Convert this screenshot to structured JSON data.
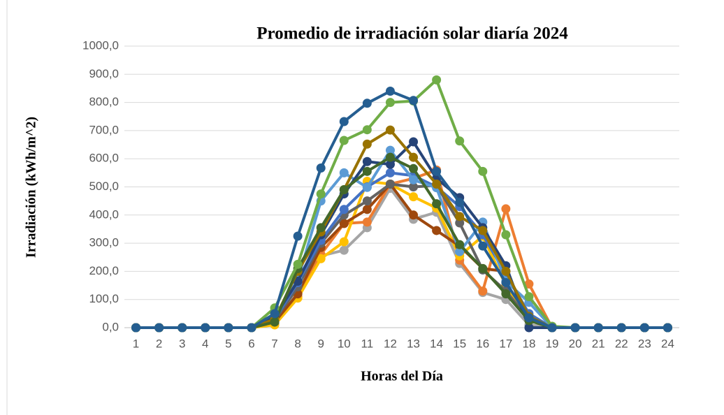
{
  "chart_data": {
    "type": "line",
    "title": "Promedio de irradiación solar  diaría 2024",
    "x_label": "Horas del Día",
    "y_label": "Irradiación (kWh/m^2)",
    "categories": [
      "1",
      "2",
      "3",
      "4",
      "5",
      "6",
      "7",
      "8",
      "9",
      "10",
      "11",
      "12",
      "13",
      "14",
      "15",
      "16",
      "17",
      "18",
      "19",
      "20",
      "21",
      "22",
      "23",
      "24"
    ],
    "ylim": [
      0,
      1000
    ],
    "yticks": [
      {
        "value": 0,
        "label": "0,0"
      },
      {
        "value": 100,
        "label": "100,0"
      },
      {
        "value": 200,
        "label": "200,0"
      },
      {
        "value": 300,
        "label": "300,0"
      },
      {
        "value": 400,
        "label": "400,0"
      },
      {
        "value": 500,
        "label": "500,0"
      },
      {
        "value": 600,
        "label": "600,0"
      },
      {
        "value": 700,
        "label": "700,0"
      },
      {
        "value": 800,
        "label": "800,0"
      },
      {
        "value": 900,
        "label": "900,0"
      },
      {
        "value": 1000,
        "label": "1000,0"
      }
    ],
    "grid": true,
    "series": [
      {
        "color": "#a5a5a5",
        "values": [
          0,
          0,
          0,
          0,
          0,
          0,
          15,
          130,
          255,
          275,
          355,
          495,
          385,
          410,
          228,
          125,
          100,
          10,
          0,
          0,
          0,
          0,
          0,
          0
        ]
      },
      {
        "color": "#ed7d31",
        "values": [
          0,
          0,
          0,
          0,
          0,
          0,
          15,
          110,
          260,
          370,
          375,
          510,
          530,
          560,
          240,
          130,
          422,
          155,
          0,
          0,
          0,
          0,
          0,
          0
        ]
      },
      {
        "color": "#ffc000",
        "values": [
          0,
          0,
          0,
          0,
          0,
          0,
          10,
          105,
          245,
          305,
          520,
          510,
          465,
          425,
          255,
          325,
          150,
          30,
          0,
          0,
          0,
          0,
          0,
          0
        ]
      },
      {
        "color": "#9e480e",
        "values": [
          0,
          0,
          0,
          0,
          0,
          0,
          20,
          120,
          285,
          370,
          420,
          510,
          400,
          345,
          290,
          210,
          200,
          40,
          0,
          0,
          0,
          0,
          0,
          0
        ]
      },
      {
        "color": "#636363",
        "values": [
          0,
          0,
          0,
          0,
          0,
          0,
          25,
          145,
          300,
          400,
          450,
          510,
          500,
          505,
          372,
          205,
          130,
          30,
          0,
          0,
          0,
          0,
          0,
          0
        ]
      },
      {
        "color": "#4472c4",
        "values": [
          0,
          0,
          0,
          0,
          0,
          0,
          30,
          160,
          310,
          420,
          500,
          550,
          540,
          500,
          430,
          330,
          190,
          50,
          0,
          0,
          0,
          0,
          0,
          0
        ]
      },
      {
        "color": "#5b9bd5",
        "values": [
          0,
          0,
          0,
          0,
          0,
          0,
          40,
          170,
          450,
          550,
          498,
          630,
          525,
          497,
          270,
          375,
          165,
          90,
          0,
          0,
          0,
          0,
          0,
          0
        ]
      },
      {
        "color": "#264478",
        "values": [
          0,
          0,
          0,
          0,
          0,
          0,
          40,
          165,
          330,
          475,
          590,
          580,
          660,
          530,
          462,
          355,
          220,
          0,
          0,
          0,
          0,
          0,
          0,
          0
        ]
      },
      {
        "color": "#997300",
        "values": [
          0,
          0,
          0,
          0,
          0,
          0,
          30,
          200,
          340,
          490,
          652,
          702,
          605,
          510,
          395,
          345,
          200,
          40,
          0,
          0,
          0,
          0,
          0,
          0
        ]
      },
      {
        "color": "#43682b",
        "values": [
          0,
          0,
          0,
          0,
          0,
          0,
          20,
          210,
          355,
          490,
          555,
          605,
          565,
          440,
          295,
          210,
          120,
          25,
          0,
          0,
          0,
          0,
          0,
          0
        ]
      },
      {
        "color": "#70ad47",
        "values": [
          0,
          0,
          0,
          0,
          0,
          0,
          70,
          225,
          475,
          665,
          703,
          800,
          805,
          880,
          663,
          555,
          330,
          110,
          5,
          0,
          0,
          0,
          0,
          0
        ]
      },
      {
        "color": "#255e91",
        "values": [
          0,
          0,
          0,
          0,
          0,
          0,
          50,
          325,
          567,
          732,
          797,
          840,
          807,
          555,
          445,
          290,
          160,
          35,
          0,
          0,
          0,
          0,
          0,
          0
        ]
      }
    ]
  }
}
